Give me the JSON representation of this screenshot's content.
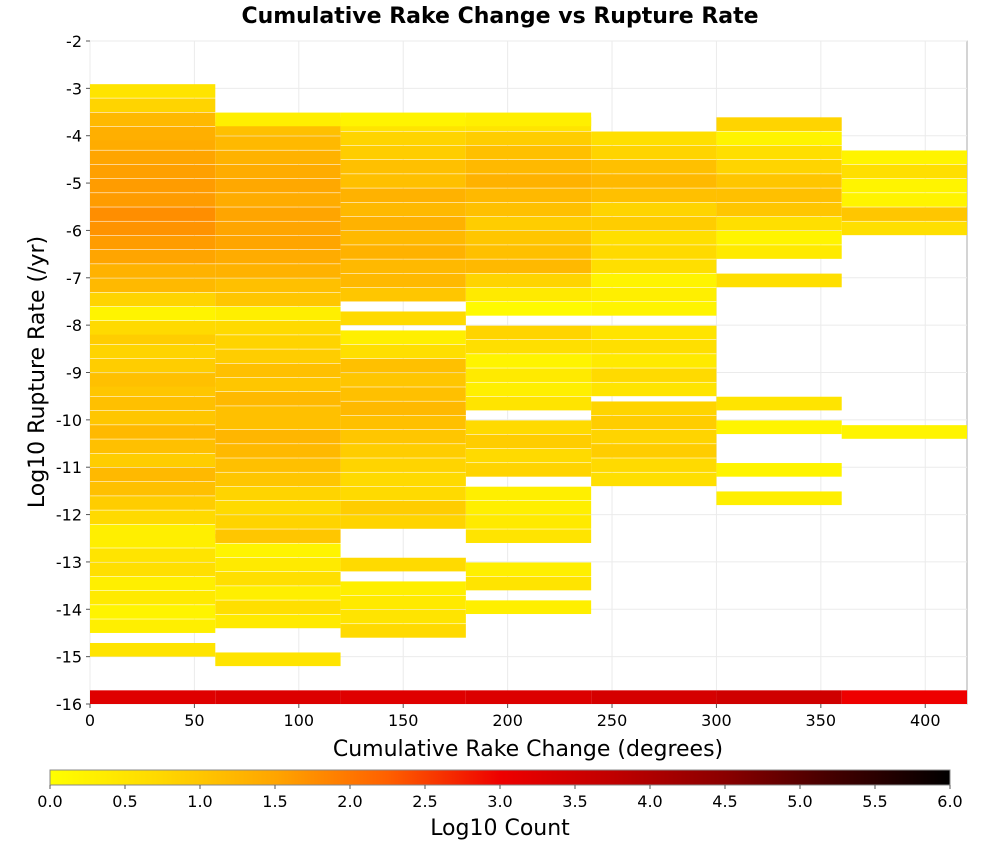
{
  "chart_data": {
    "type": "heatmap",
    "title": "Cumulative Rake Change vs Rupture Rate",
    "xlabel": "Cumulative Rake Change (degrees)",
    "ylabel": "Log10 Rupture Rate (/yr)",
    "xlim": [
      0,
      420
    ],
    "ylim": [
      -16,
      -2
    ],
    "x_ticks": [
      "0",
      "50",
      "100",
      "150",
      "200",
      "250",
      "300",
      "350",
      "400"
    ],
    "y_ticks": [
      "-2",
      "-3",
      "-4",
      "-5",
      "-6",
      "-7",
      "-8",
      "-9",
      "-10",
      "-11",
      "-12",
      "-13",
      "-14",
      "-15",
      "-16"
    ],
    "x_bin_width": 60,
    "y_bin_height": 0.2884,
    "grid": true,
    "colorbar": {
      "label": "Log10 Count",
      "min": 0,
      "max": 6,
      "ticks": [
        "0.0",
        "0.5",
        "1.0",
        "1.5",
        "2.0",
        "2.5",
        "3.0",
        "3.5",
        "4.0",
        "4.5",
        "5.0",
        "5.5",
        "6.0"
      ],
      "colors": [
        "#ffff00",
        "#ffd700",
        "#ffa500",
        "#ff6000",
        "#ee0000",
        "#c00000",
        "#8a0000",
        "#400000",
        "#000000"
      ]
    },
    "columns": [
      {
        "x0": 0,
        "x1": 60,
        "cells": [
          [
            -16.0,
            3.25
          ],
          [
            -15.0,
            0.5
          ],
          [
            -14.5,
            0.3
          ],
          [
            -14.2,
            0.2
          ],
          [
            -13.9,
            0.4
          ],
          [
            -13.6,
            0.3
          ],
          [
            -13.3,
            0.6
          ],
          [
            -13.0,
            0.5
          ],
          [
            -12.7,
            0.3
          ],
          [
            -12.5,
            0.3
          ],
          [
            -12.2,
            0.7
          ],
          [
            -11.9,
            0.9
          ],
          [
            -11.6,
            1.1
          ],
          [
            -11.3,
            1.2
          ],
          [
            -11.0,
            0.9
          ],
          [
            -10.7,
            1.1
          ],
          [
            -10.4,
            1.2
          ],
          [
            -10.1,
            1.0
          ],
          [
            -9.8,
            1.1
          ],
          [
            -9.5,
            1.0
          ],
          [
            -9.3,
            1.1
          ],
          [
            -9.0,
            0.9
          ],
          [
            -8.7,
            0.8
          ],
          [
            -8.4,
            0.9
          ],
          [
            -8.2,
            0.7
          ],
          [
            -7.9,
            0.2
          ],
          [
            -7.6,
            0.8
          ],
          [
            -7.3,
            1.2
          ],
          [
            -7.0,
            1.3
          ],
          [
            -6.7,
            1.5
          ],
          [
            -6.4,
            1.6
          ],
          [
            -6.1,
            1.7
          ],
          [
            -5.8,
            1.75
          ],
          [
            -5.5,
            1.6
          ],
          [
            -5.2,
            1.6
          ],
          [
            -4.9,
            1.55
          ],
          [
            -4.6,
            1.5
          ],
          [
            -4.3,
            1.4
          ],
          [
            -4.1,
            1.35
          ],
          [
            -3.8,
            1.2
          ],
          [
            -3.5,
            0.8
          ],
          [
            -3.2,
            0.5
          ]
        ]
      },
      {
        "x0": 60,
        "x1": 120,
        "cells": [
          [
            -16.0,
            3.3
          ],
          [
            -15.2,
            0.5
          ],
          [
            -14.4,
            0.4
          ],
          [
            -14.1,
            0.6
          ],
          [
            -13.8,
            0.3
          ],
          [
            -13.5,
            0.6
          ],
          [
            -13.2,
            0.4
          ],
          [
            -12.9,
            0.2
          ],
          [
            -12.6,
            1.0
          ],
          [
            -12.3,
            0.8
          ],
          [
            -12.0,
            0.7
          ],
          [
            -11.7,
            0.8
          ],
          [
            -11.4,
            1.0
          ],
          [
            -11.1,
            1.1
          ],
          [
            -10.8,
            1.2
          ],
          [
            -10.5,
            1.25
          ],
          [
            -10.2,
            1.1
          ],
          [
            -10.0,
            1.1
          ],
          [
            -9.7,
            1.2
          ],
          [
            -9.4,
            1.0
          ],
          [
            -9.1,
            1.1
          ],
          [
            -8.8,
            0.9
          ],
          [
            -8.5,
            0.8
          ],
          [
            -8.2,
            0.7
          ],
          [
            -7.9,
            0.3
          ],
          [
            -7.6,
            1.0
          ],
          [
            -7.3,
            1.1
          ],
          [
            -7.0,
            1.3
          ],
          [
            -6.7,
            1.4
          ],
          [
            -6.4,
            1.5
          ],
          [
            -6.1,
            1.5
          ],
          [
            -5.8,
            1.5
          ],
          [
            -5.5,
            1.4
          ],
          [
            -5.2,
            1.45
          ],
          [
            -4.9,
            1.4
          ],
          [
            -4.6,
            1.3
          ],
          [
            -4.3,
            1.2
          ],
          [
            -4.0,
            1.1
          ],
          [
            -3.8,
            0.3
          ]
        ]
      },
      {
        "x0": 120,
        "x1": 180,
        "cells": [
          [
            -16.0,
            3.25
          ],
          [
            -14.6,
            0.7
          ],
          [
            -14.3,
            0.5
          ],
          [
            -14.0,
            0.4
          ],
          [
            -13.7,
            0.3
          ],
          [
            -13.2,
            0.7
          ],
          [
            -12.3,
            0.8
          ],
          [
            -12.0,
            0.9
          ],
          [
            -11.7,
            0.7
          ],
          [
            -11.4,
            0.7
          ],
          [
            -11.1,
            0.8
          ],
          [
            -10.8,
            0.9
          ],
          [
            -10.5,
            1.0
          ],
          [
            -10.2,
            1.1
          ],
          [
            -9.9,
            1.2
          ],
          [
            -9.6,
            1.1
          ],
          [
            -9.3,
            1.0
          ],
          [
            -9.0,
            1.1
          ],
          [
            -8.7,
            0.6
          ],
          [
            -8.4,
            0.3
          ],
          [
            -8.0,
            0.7
          ],
          [
            -7.5,
            1.0
          ],
          [
            -7.2,
            1.2
          ],
          [
            -6.9,
            1.2
          ],
          [
            -6.6,
            1.3
          ],
          [
            -6.3,
            1.2
          ],
          [
            -6.0,
            1.3
          ],
          [
            -5.7,
            1.2
          ],
          [
            -5.4,
            1.3
          ],
          [
            -5.1,
            1.1
          ],
          [
            -4.8,
            1.1
          ],
          [
            -4.5,
            0.9
          ],
          [
            -4.2,
            0.8
          ],
          [
            -3.9,
            0.5
          ],
          [
            -3.8,
            0.2
          ]
        ]
      },
      {
        "x0": 180,
        "x1": 240,
        "cells": [
          [
            -16.0,
            3.3
          ],
          [
            -14.1,
            0.3
          ],
          [
            -13.6,
            0.5
          ],
          [
            -13.3,
            0.3
          ],
          [
            -12.6,
            0.5
          ],
          [
            -12.3,
            0.4
          ],
          [
            -12.0,
            0.3
          ],
          [
            -11.7,
            0.3
          ],
          [
            -11.2,
            0.8
          ],
          [
            -10.9,
            0.7
          ],
          [
            -10.6,
            0.9
          ],
          [
            -10.3,
            0.7
          ],
          [
            -9.8,
            0.5
          ],
          [
            -9.5,
            0.3
          ],
          [
            -9.2,
            0.4
          ],
          [
            -8.9,
            0.2
          ],
          [
            -8.6,
            0.6
          ],
          [
            -8.3,
            0.8
          ],
          [
            -7.8,
            0.1
          ],
          [
            -7.5,
            0.4
          ],
          [
            -7.2,
            0.8
          ],
          [
            -6.9,
            1.2
          ],
          [
            -6.6,
            1.1
          ],
          [
            -6.3,
            1.0
          ],
          [
            -6.0,
            0.9
          ],
          [
            -5.7,
            1.1
          ],
          [
            -5.4,
            1.2
          ],
          [
            -5.1,
            1.3
          ],
          [
            -4.8,
            1.2
          ],
          [
            -4.5,
            1.1
          ],
          [
            -4.2,
            0.9
          ],
          [
            -3.9,
            0.5
          ],
          [
            -3.8,
            0.3
          ]
        ]
      },
      {
        "x0": 240,
        "x1": 300,
        "cells": [
          [
            -16.0,
            3.4
          ],
          [
            -11.4,
            0.6
          ],
          [
            -11.1,
            0.7
          ],
          [
            -10.8,
            0.9
          ],
          [
            -10.5,
            0.8
          ],
          [
            -10.2,
            0.9
          ],
          [
            -9.9,
            0.8
          ],
          [
            -9.5,
            0.5
          ],
          [
            -9.2,
            0.7
          ],
          [
            -8.9,
            0.4
          ],
          [
            -8.6,
            0.6
          ],
          [
            -8.3,
            0.5
          ],
          [
            -7.8,
            0.2
          ],
          [
            -7.5,
            0.3
          ],
          [
            -7.2,
            0.2
          ],
          [
            -6.9,
            0.6
          ],
          [
            -6.6,
            0.7
          ],
          [
            -6.3,
            0.6
          ],
          [
            -6.0,
            0.9
          ],
          [
            -5.7,
            0.8
          ],
          [
            -5.4,
            1.1
          ],
          [
            -5.1,
            1.2
          ],
          [
            -4.8,
            1.1
          ],
          [
            -4.5,
            0.8
          ],
          [
            -4.2,
            0.6
          ]
        ]
      },
      {
        "x0": 300,
        "x1": 360,
        "cells": [
          [
            -16.0,
            3.5
          ],
          [
            -11.8,
            0.3
          ],
          [
            -11.2,
            0.2
          ],
          [
            -10.3,
            0.2
          ],
          [
            -9.8,
            0.5
          ],
          [
            -7.2,
            0.6
          ],
          [
            -6.6,
            0.4
          ],
          [
            -6.3,
            0.2
          ],
          [
            -6.0,
            0.6
          ],
          [
            -5.7,
            1.0
          ],
          [
            -5.4,
            1.1
          ],
          [
            -5.1,
            1.0
          ],
          [
            -4.8,
            0.8
          ],
          [
            -4.5,
            0.6
          ],
          [
            -4.2,
            0.2
          ],
          [
            -3.9,
            0.8
          ]
        ]
      },
      {
        "x0": 360,
        "x1": 420,
        "cells": [
          [
            -16.0,
            3.0
          ],
          [
            -10.4,
            0.2
          ],
          [
            -6.1,
            0.6
          ],
          [
            -5.8,
            1.0
          ],
          [
            -5.5,
            0.2
          ],
          [
            -5.2,
            0.2
          ],
          [
            -4.9,
            0.6
          ],
          [
            -4.6,
            0.2
          ]
        ]
      }
    ]
  }
}
